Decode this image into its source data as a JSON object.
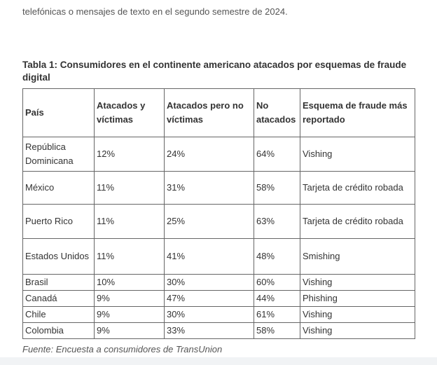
{
  "intro": "telefónicas o mensajes de texto en el segundo semestre de 2024.",
  "caption": "Tabla 1: Consumidores en el continente americano atacados por esquemas de fraude digital",
  "table": {
    "header": [
      "País",
      "Atacados y víctimas",
      "Atacados pero no víctimas",
      "No atacados",
      "Esquema de fraude más reportado"
    ],
    "rows": [
      [
        "República Dominicana",
        "12%",
        "24%",
        "64%",
        "Vishing"
      ],
      [
        "México",
        "11%",
        "31%",
        "58%",
        "Tarjeta de crédito robada"
      ],
      [
        "Puerto Rico",
        "11%",
        "25%",
        "63%",
        "Tarjeta de crédito robada"
      ],
      [
        "Estados Unidos",
        "11%",
        "41%",
        "48%",
        "Smishing"
      ],
      [
        "Brasil",
        "10%",
        "30%",
        "60%",
        "Vishing"
      ],
      [
        "Canadá",
        "9%",
        "47%",
        "44%",
        "Phishing"
      ],
      [
        "Chile",
        "9%",
        "30%",
        "61%",
        "Vishing"
      ],
      [
        "Colombia",
        "9%",
        "33%",
        "58%",
        "Vishing"
      ]
    ]
  },
  "source": "Fuente: Encuesta a consumidores de TransUnion"
}
